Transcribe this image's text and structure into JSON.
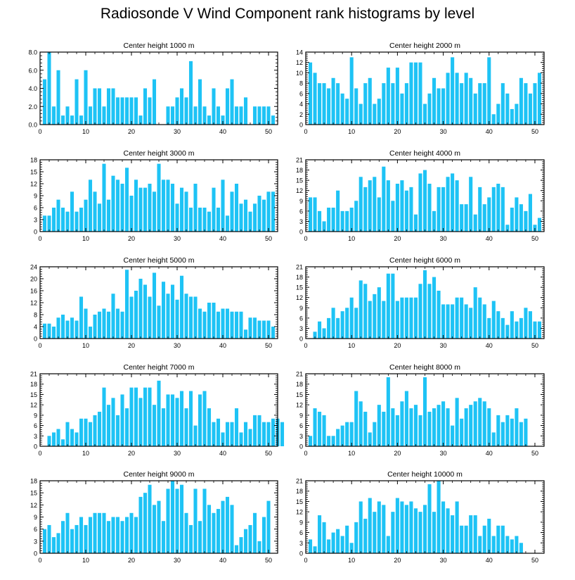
{
  "title": "Radiosonde V Wind Component rank histograms by level",
  "bar_color": "#1ec3f5",
  "chart_data": [
    {
      "type": "bar",
      "title": "Center height 1000 m",
      "ylim": [
        0,
        8
      ],
      "yticks": [
        0,
        2,
        4,
        6,
        8
      ],
      "ytick_labels": [
        "0.0",
        "2.0",
        "4.0",
        "6.0",
        "8.0"
      ],
      "xlim": [
        0,
        52
      ],
      "xticks": [
        0,
        10,
        20,
        30,
        40,
        50
      ],
      "xtick_labels": [
        "0",
        "10",
        "20",
        "30",
        "40",
        "50"
      ],
      "values": [
        5,
        8,
        2,
        6,
        1,
        2,
        1,
        5,
        1,
        6,
        2,
        4,
        4,
        2,
        4,
        4,
        3,
        3,
        3,
        3,
        3,
        1,
        4,
        3,
        5,
        0,
        0,
        2,
        2,
        3,
        4,
        3,
        7,
        2,
        5,
        2,
        1,
        4,
        2,
        1,
        4,
        5,
        2,
        2,
        3,
        0,
        2,
        2,
        2,
        2,
        1
      ]
    },
    {
      "type": "bar",
      "title": "Center height 2000 m",
      "ylim": [
        0,
        14
      ],
      "yticks": [
        0,
        2,
        4,
        6,
        8,
        10,
        12,
        14
      ],
      "ytick_labels": [
        "0",
        "2",
        "4",
        "6",
        "8",
        "10",
        "12",
        "14"
      ],
      "xlim": [
        0,
        52
      ],
      "xticks": [
        0,
        10,
        20,
        30,
        40,
        50
      ],
      "xtick_labels": [
        "0",
        "10",
        "20",
        "30",
        "40",
        "50"
      ],
      "values": [
        12,
        10,
        8,
        8,
        7,
        9,
        8,
        6,
        5,
        13,
        7,
        4,
        8,
        9,
        4,
        5,
        8,
        11,
        8,
        11,
        6,
        8,
        12,
        12,
        12,
        4,
        6,
        9,
        7,
        7,
        10,
        13,
        10,
        8,
        10,
        9,
        6,
        8,
        8,
        13,
        2,
        4,
        8,
        6,
        3,
        4,
        9,
        8,
        6,
        8,
        10
      ]
    },
    {
      "type": "bar",
      "title": "Center height 3000 m",
      "ylim": [
        0,
        18
      ],
      "yticks": [
        0,
        3,
        6,
        9,
        12,
        15,
        18
      ],
      "ytick_labels": [
        "0",
        "3",
        "6",
        "9",
        "12",
        "15",
        "18"
      ],
      "xlim": [
        0,
        52
      ],
      "xticks": [
        0,
        10,
        20,
        30,
        40,
        50
      ],
      "xtick_labels": [
        "0",
        "10",
        "20",
        "30",
        "40",
        "50"
      ],
      "values": [
        4,
        4,
        6,
        8,
        6,
        5,
        10,
        5,
        6,
        8,
        13,
        10,
        7,
        17,
        8,
        14,
        13,
        12,
        16,
        9,
        13,
        11,
        11,
        12,
        10,
        17,
        13,
        13,
        12,
        7,
        11,
        10,
        6,
        12,
        6,
        6,
        5,
        11,
        6,
        13,
        4,
        10,
        12,
        7,
        8,
        5,
        7,
        9,
        8,
        10,
        10
      ]
    },
    {
      "type": "bar",
      "title": "Center height 4000 m",
      "ylim": [
        0,
        21
      ],
      "yticks": [
        0,
        3,
        6,
        9,
        12,
        15,
        18,
        21
      ],
      "ytick_labels": [
        "0",
        "3",
        "6",
        "9",
        "12",
        "15",
        "18",
        "21"
      ],
      "xlim": [
        0,
        52
      ],
      "xticks": [
        0,
        10,
        20,
        30,
        40,
        50
      ],
      "xtick_labels": [
        "0",
        "10",
        "20",
        "30",
        "40",
        "50"
      ],
      "values": [
        10,
        10,
        6,
        3,
        7,
        7,
        12,
        6,
        6,
        7,
        9,
        16,
        13,
        15,
        16,
        10,
        19,
        15,
        9,
        14,
        15,
        12,
        13,
        5,
        17,
        18,
        14,
        6,
        13,
        13,
        16,
        17,
        15,
        8,
        8,
        16,
        5,
        13,
        8,
        10,
        13,
        14,
        13,
        2,
        7,
        10,
        8,
        6,
        11,
        2,
        4
      ]
    },
    {
      "type": "bar",
      "title": "Center height 5000 m",
      "ylim": [
        0,
        24
      ],
      "yticks": [
        0,
        4,
        8,
        12,
        16,
        20,
        24
      ],
      "ytick_labels": [
        "0",
        "4",
        "8",
        "12",
        "16",
        "20",
        "24"
      ],
      "xlim": [
        0,
        52
      ],
      "xticks": [
        0,
        10,
        20,
        30,
        40,
        50
      ],
      "xtick_labels": [
        "0",
        "10",
        "20",
        "30",
        "40",
        "50"
      ],
      "values": [
        5,
        5,
        4,
        7,
        8,
        6,
        7,
        6,
        14,
        10,
        4,
        8,
        9,
        10,
        9,
        15,
        10,
        9,
        23,
        14,
        16,
        20,
        18,
        14,
        22,
        11,
        19,
        15,
        18,
        13,
        21,
        15,
        14,
        14,
        10,
        9,
        12,
        12,
        9,
        10,
        10,
        9,
        9,
        9,
        3,
        7,
        7,
        6,
        6,
        6,
        4
      ]
    },
    {
      "type": "bar",
      "title": "Center height 6000 m",
      "ylim": [
        0,
        21
      ],
      "yticks": [
        0,
        3,
        6,
        9,
        12,
        15,
        18,
        21
      ],
      "ytick_labels": [
        "0",
        "3",
        "6",
        "9",
        "12",
        "15",
        "18",
        "21"
      ],
      "xlim": [
        0,
        52
      ],
      "xticks": [
        0,
        10,
        20,
        30,
        40,
        50
      ],
      "xtick_labels": [
        "0",
        "10",
        "20",
        "30",
        "40",
        "50"
      ],
      "values": [
        0,
        2,
        5,
        3,
        6,
        9,
        6,
        8,
        9,
        12,
        9,
        17,
        16,
        11,
        13,
        15,
        11,
        19,
        19,
        11,
        12,
        12,
        12,
        12,
        16,
        20,
        16,
        18,
        14,
        10,
        10,
        10,
        12,
        12,
        10,
        9,
        15,
        12,
        10,
        6,
        11,
        8,
        6,
        4,
        8,
        5,
        6,
        9,
        8,
        5,
        5
      ]
    },
    {
      "type": "bar",
      "title": "Center height 7000 m",
      "ylim": [
        0,
        21
      ],
      "yticks": [
        0,
        3,
        6,
        9,
        12,
        15,
        18,
        21
      ],
      "ytick_labels": [
        "0",
        "3",
        "6",
        "9",
        "12",
        "15",
        "18",
        "21"
      ],
      "xlim": [
        0,
        52
      ],
      "xticks": [
        0,
        10,
        20,
        30,
        40,
        50
      ],
      "xtick_labels": [
        "0",
        "10",
        "20",
        "30",
        "40",
        "50"
      ],
      "values": [
        0,
        3,
        4,
        5,
        2,
        7,
        5,
        4,
        8,
        8,
        7,
        9,
        10,
        17,
        12,
        14,
        9,
        15,
        11,
        17,
        17,
        14,
        17,
        17,
        12,
        19,
        11,
        15,
        15,
        14,
        16,
        11,
        16,
        6,
        15,
        16,
        11,
        7,
        8,
        4,
        7,
        7,
        11,
        4,
        7,
        5,
        9,
        9,
        7,
        7,
        8,
        8,
        7
      ]
    },
    {
      "type": "bar",
      "title": "Center height 8000 m",
      "ylim": [
        0,
        21
      ],
      "yticks": [
        0,
        3,
        6,
        9,
        12,
        15,
        18,
        21
      ],
      "ytick_labels": [
        "0",
        "3",
        "6",
        "9",
        "12",
        "15",
        "18",
        "21"
      ],
      "xlim": [
        0,
        52
      ],
      "xticks": [
        0,
        10,
        20,
        30,
        40,
        50
      ],
      "xtick_labels": [
        "0",
        "10",
        "20",
        "30",
        "40",
        "50"
      ],
      "values": [
        3,
        11,
        10,
        9,
        3,
        3,
        5,
        6,
        7,
        7,
        16,
        13,
        10,
        4,
        7,
        12,
        10,
        20,
        11,
        9,
        13,
        16,
        11,
        12,
        9,
        20,
        10,
        11,
        12,
        13,
        11,
        6,
        14,
        8,
        11,
        12,
        13,
        14,
        13,
        11,
        4,
        9,
        7,
        9,
        8,
        11,
        7,
        8
      ]
    },
    {
      "type": "bar",
      "title": "Center height 9000 m",
      "ylim": [
        0,
        18
      ],
      "yticks": [
        0,
        3,
        6,
        9,
        12,
        15,
        18
      ],
      "ytick_labels": [
        "0",
        "3",
        "6",
        "9",
        "12",
        "15",
        "18"
      ],
      "xlim": [
        0,
        52
      ],
      "xticks": [
        0,
        10,
        20,
        30,
        40,
        50
      ],
      "xtick_labels": [
        "0",
        "10",
        "20",
        "30",
        "40",
        "50"
      ],
      "values": [
        6,
        7,
        4,
        5,
        8,
        10,
        6,
        7,
        9,
        7,
        9,
        10,
        10,
        10,
        8,
        9,
        9,
        8,
        9,
        10,
        9,
        14,
        15,
        17,
        12,
        13,
        8,
        16,
        18,
        16,
        17,
        10,
        7,
        16,
        8,
        16,
        12,
        10,
        11,
        13,
        14,
        12,
        2,
        4,
        6,
        7,
        10,
        3,
        9,
        13
      ]
    },
    {
      "type": "bar",
      "title": "Center height 10000 m",
      "ylim": [
        0,
        21
      ],
      "yticks": [
        0,
        3,
        6,
        9,
        12,
        15,
        18,
        21
      ],
      "ytick_labels": [
        "0",
        "3",
        "6",
        "9",
        "12",
        "15",
        "18",
        "21"
      ],
      "xlim": [
        0,
        52
      ],
      "xticks": [
        0,
        10,
        20,
        30,
        40,
        50
      ],
      "xtick_labels": [
        "0",
        "10",
        "20",
        "30",
        "40",
        "50"
      ],
      "values": [
        4,
        2,
        11,
        9,
        4,
        6,
        7,
        5,
        8,
        3,
        9,
        15,
        10,
        16,
        12,
        15,
        14,
        5,
        12,
        16,
        15,
        14,
        15,
        13,
        12,
        14,
        20,
        12,
        21,
        15,
        13,
        11,
        15,
        8,
        8,
        11,
        11,
        5,
        8,
        10,
        5,
        8,
        8,
        5,
        4,
        5,
        3
      ]
    }
  ]
}
